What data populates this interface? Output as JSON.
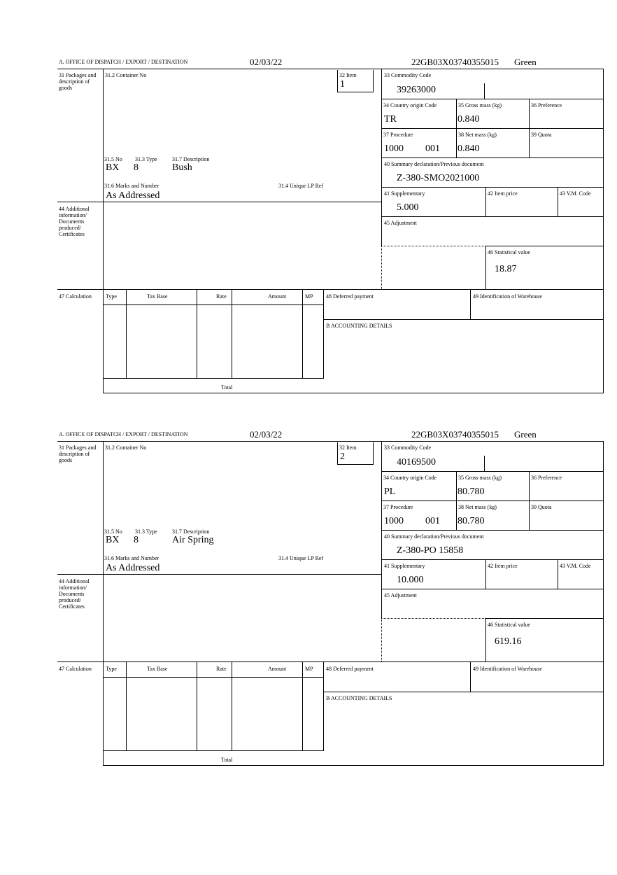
{
  "labels": {
    "office": "A. OFFICE OF DISPATCH / EXPORT / DESTINATION",
    "packages": "31 Packages and description of goods",
    "container": "31.2 Container No",
    "item": "32 Item",
    "no": "31.5 No",
    "type": "31.3 Type",
    "description": "31.7 Description",
    "marks": "31.6 Marks and Number",
    "unique_ref": "31.4 Unique LP Ref",
    "commodity": "33 Commodity Code",
    "country": "34 Country origin Code",
    "gross": "35 Gross mass (kg)",
    "preference": "36 Preference",
    "procedure": "37 Procedure",
    "net": "38 Net mass (kg)",
    "quota": "39 Quota",
    "summary": "40 Summary declaration/Previous document",
    "supplementary": "41 Supplementary",
    "item_price": "42 Item price",
    "vm_code": "43 V.M. Code",
    "adjustment": "45 Adjustment",
    "statistical": "46 Statistical value",
    "additional": "44 Additional information/ Documents produced/ Certificates",
    "calculation": "47 Calculation",
    "col_type": "Type",
    "col_tax_base": "Tax Base",
    "col_rate": "Rate",
    "col_amount": "Amount",
    "col_mp": "MP",
    "deferred": "48 Deferred payment",
    "warehouse": "49 Identification of Warehouse",
    "accounting": "B ACCOUNTING DETAILS",
    "total": "Total"
  },
  "items": [
    {
      "date": "02/03/22",
      "reference": "22GB03X03740355015",
      "route": "Green",
      "item_no": "1",
      "package_kind": "BX",
      "package_count": "8",
      "description": "Bush",
      "marks": "As Addressed",
      "commodity_code": "39263000",
      "country": "TR",
      "gross_mass": "0.840",
      "procedure": "1000",
      "procedure_add": "001",
      "net_mass": "0.840",
      "previous_document": "Z-380-SMO2021000",
      "supplementary": "5.000",
      "statistical_value": "18.87"
    },
    {
      "date": "02/03/22",
      "reference": "22GB03X03740355015",
      "route": "Green",
      "item_no": "2",
      "package_kind": "BX",
      "package_count": "8",
      "description": "Air Spring",
      "marks": "As Addressed",
      "commodity_code": "40169500",
      "country": "PL",
      "gross_mass": "80.780",
      "procedure": "1000",
      "procedure_add": "001",
      "net_mass": "80.780",
      "previous_document": "Z-380-PO 15858",
      "supplementary": "10.000",
      "statistical_value": "619.16"
    }
  ]
}
